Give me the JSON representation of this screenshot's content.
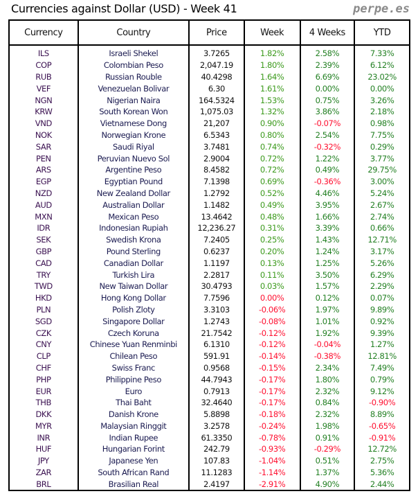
{
  "title": "Currencies against Dollar (USD) - Week 41",
  "brand": "perpe.es",
  "colors": {
    "positive": "#238023",
    "negative": "#ff1030"
  },
  "columns": [
    "Currency",
    "Country",
    "Price",
    "Week",
    "4 Weeks",
    "YTD"
  ],
  "rows": [
    [
      "ILS",
      "Israeli Shekel",
      "3.7265",
      "1.82%",
      "2.58%",
      "7.33%"
    ],
    [
      "COP",
      "Colombian Peso",
      "2,047.19",
      "1.80%",
      "2.39%",
      "6.12%"
    ],
    [
      "RUB",
      "Russian Rouble",
      "40.4298",
      "1.64%",
      "6.69%",
      "23.02%"
    ],
    [
      "VEF",
      "Venezuelan Bolivar",
      "6.30",
      "1.61%",
      "0.00%",
      "0.00%"
    ],
    [
      "NGN",
      "Nigerian Naira",
      "164.5324",
      "1.53%",
      "0.75%",
      "3.26%"
    ],
    [
      "KRW",
      "South Korean Won",
      "1,075.03",
      "1.32%",
      "3.86%",
      "2.18%"
    ],
    [
      "VND",
      "Vietnamese Dong",
      "21,207",
      "0.90%",
      "-0.07%",
      "0.98%"
    ],
    [
      "NOK",
      "Norwegian Krone",
      "6.5343",
      "0.80%",
      "2.54%",
      "7.75%"
    ],
    [
      "SAR",
      "Saudi Riyal",
      "3.7481",
      "0.74%",
      "-0.32%",
      "0.29%"
    ],
    [
      "PEN",
      "Peruvian Nuevo Sol",
      "2.9004",
      "0.72%",
      "1.22%",
      "3.77%"
    ],
    [
      "ARS",
      "Argentine Peso",
      "8.4582",
      "0.72%",
      "0.49%",
      "29.75%"
    ],
    [
      "EGP",
      "Egyptian Pound",
      "7.1398",
      "0.69%",
      "-0.36%",
      "3.00%"
    ],
    [
      "NZD",
      "New Zealand Dollar",
      "1.2792",
      "0.52%",
      "4.46%",
      "5.24%"
    ],
    [
      "AUD",
      "Australian Dollar",
      "1.1482",
      "0.49%",
      "3.95%",
      "2.67%"
    ],
    [
      "MXN",
      "Mexican Peso",
      "13.4642",
      "0.48%",
      "1.66%",
      "2.74%"
    ],
    [
      "IDR",
      "Indonesian Rupiah",
      "12,236.27",
      "0.31%",
      "3.39%",
      "0.66%"
    ],
    [
      "SEK",
      "Swedish Krona",
      "7.2405",
      "0.25%",
      "1.43%",
      "12.71%"
    ],
    [
      "GBP",
      "Pound Sterling",
      "0.6237",
      "0.20%",
      "1.24%",
      "3.17%"
    ],
    [
      "CAD",
      "Canadian Dollar",
      "1.1197",
      "0.13%",
      "1.25%",
      "5.26%"
    ],
    [
      "TRY",
      "Turkish Lira",
      "2.2817",
      "0.11%",
      "3.50%",
      "6.29%"
    ],
    [
      "TWD",
      "New Taiwan Dollar",
      "30.4793",
      "0.03%",
      "1.57%",
      "2.29%"
    ],
    [
      "HKD",
      "Hong Kong Dollar",
      "7.7596",
      "0.00%",
      "0.12%",
      "0.07%"
    ],
    [
      "PLN",
      "Polish Zloty",
      "3.3103",
      "-0.06%",
      "1.97%",
      "9.89%"
    ],
    [
      "SGD",
      "Singapore Dollar",
      "1.2743",
      "-0.08%",
      "1.01%",
      "0.92%"
    ],
    [
      "CZK",
      "Czech Koruna",
      "21.7542",
      "-0.12%",
      "1.92%",
      "9.39%"
    ],
    [
      "CNY",
      "Chinese Yuan Renminbi",
      "6.1310",
      "-0.12%",
      "-0.04%",
      "1.27%"
    ],
    [
      "CLP",
      "Chilean Peso",
      "591.91",
      "-0.14%",
      "-0.38%",
      "12.81%"
    ],
    [
      "CHF",
      "Swiss Franc",
      "0.9568",
      "-0.15%",
      "2.34%",
      "7.49%"
    ],
    [
      "PHP",
      "Philippine Peso",
      "44.7943",
      "-0.17%",
      "1.80%",
      "0.79%"
    ],
    [
      "EUR",
      "Euro",
      "0.7913",
      "-0.17%",
      "2.32%",
      "9.12%"
    ],
    [
      "THB",
      "Thai Baht",
      "32.4640",
      "-0.17%",
      "0.84%",
      "-0.90%"
    ],
    [
      "DKK",
      "Danish Krone",
      "5.8898",
      "-0.18%",
      "2.32%",
      "8.89%"
    ],
    [
      "MYR",
      "Malaysian Ringgit",
      "3.2578",
      "-0.24%",
      "1.98%",
      "-0.65%"
    ],
    [
      "INR",
      "Indian Rupee",
      "61.3350",
      "-0.78%",
      "0.91%",
      "-0.91%"
    ],
    [
      "HUF",
      "Hungarian Forint",
      "242.79",
      "-0.93%",
      "-0.29%",
      "12.72%"
    ],
    [
      "JPY",
      "Japanese Yen",
      "107.83",
      "-1.04%",
      "0.51%",
      "2.75%"
    ],
    [
      "ZAR",
      "South African Rand",
      "11.1283",
      "-1.14%",
      "1.37%",
      "5.36%"
    ],
    [
      "BRL",
      "Brasilian Real",
      "2.4197",
      "-2.91%",
      "4.90%",
      "2.44%"
    ]
  ]
}
